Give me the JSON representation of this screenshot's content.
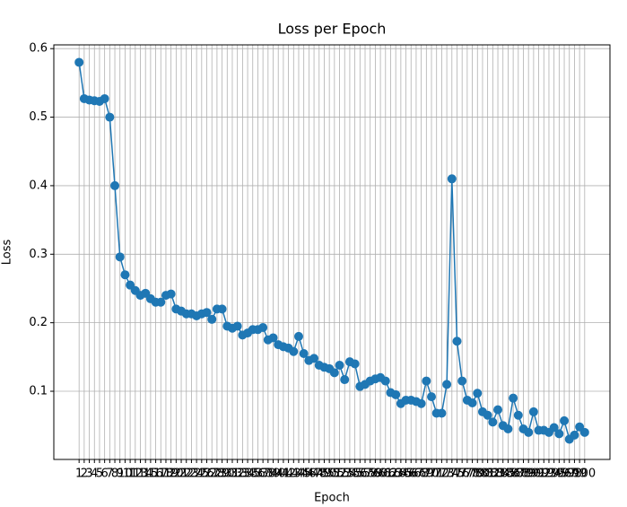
{
  "chart_data": {
    "type": "line",
    "title": "Loss per Epoch",
    "x_label": "Epoch",
    "y_label": "Loss",
    "x": [
      1,
      2,
      3,
      4,
      5,
      6,
      7,
      8,
      9,
      10,
      11,
      12,
      13,
      14,
      15,
      16,
      17,
      18,
      19,
      20,
      21,
      22,
      23,
      24,
      25,
      26,
      27,
      28,
      29,
      30,
      31,
      32,
      33,
      34,
      35,
      36,
      37,
      38,
      39,
      40,
      41,
      42,
      43,
      44,
      45,
      46,
      47,
      48,
      49,
      50,
      51,
      52,
      53,
      54,
      55,
      56,
      57,
      58,
      59,
      60,
      61,
      62,
      63,
      64,
      65,
      66,
      67,
      68,
      69,
      70,
      71,
      72,
      73,
      74,
      75,
      76,
      77,
      78,
      79,
      80,
      81,
      82,
      83,
      84,
      85,
      86,
      87,
      88,
      89,
      90,
      91,
      92,
      93,
      94,
      95,
      96,
      97,
      98,
      99,
      100
    ],
    "series": [
      {
        "name": "Loss",
        "color": "#1f77b4",
        "values": [
          0.58,
          0.527,
          0.525,
          0.524,
          0.523,
          0.527,
          0.5,
          0.4,
          0.296,
          0.27,
          0.255,
          0.247,
          0.24,
          0.243,
          0.235,
          0.23,
          0.23,
          0.24,
          0.242,
          0.22,
          0.217,
          0.213,
          0.213,
          0.21,
          0.213,
          0.215,
          0.205,
          0.22,
          0.22,
          0.195,
          0.192,
          0.195,
          0.182,
          0.185,
          0.19,
          0.19,
          0.193,
          0.175,
          0.178,
          0.168,
          0.165,
          0.163,
          0.158,
          0.18,
          0.155,
          0.145,
          0.148,
          0.138,
          0.135,
          0.133,
          0.127,
          0.138,
          0.117,
          0.143,
          0.14,
          0.107,
          0.11,
          0.115,
          0.118,
          0.12,
          0.115,
          0.098,
          0.095,
          0.082,
          0.087,
          0.087,
          0.085,
          0.082,
          0.115,
          0.092,
          0.068,
          0.068,
          0.11,
          0.41,
          0.173,
          0.115,
          0.087,
          0.083,
          0.097,
          0.07,
          0.065,
          0.055,
          0.073,
          0.05,
          0.045,
          0.09,
          0.065,
          0.045,
          0.04,
          0.07,
          0.043,
          0.043,
          0.04,
          0.047,
          0.038,
          0.057,
          0.03,
          0.036,
          0.048,
          0.04
        ]
      }
    ],
    "xlim": [
      -3.95,
      104.95
    ],
    "ylim": [
      0.0005,
      0.6055
    ],
    "xticks": [
      1,
      2,
      3,
      4,
      5,
      6,
      7,
      8,
      9,
      10,
      11,
      12,
      13,
      14,
      15,
      16,
      17,
      18,
      19,
      20,
      21,
      22,
      23,
      24,
      25,
      26,
      27,
      28,
      29,
      30,
      31,
      32,
      33,
      34,
      35,
      36,
      37,
      38,
      39,
      40,
      41,
      42,
      43,
      44,
      45,
      46,
      47,
      48,
      49,
      50,
      51,
      52,
      53,
      54,
      55,
      56,
      57,
      58,
      59,
      60,
      61,
      62,
      63,
      64,
      65,
      66,
      67,
      68,
      69,
      70,
      71,
      72,
      73,
      74,
      75,
      76,
      77,
      78,
      79,
      80,
      81,
      82,
      83,
      84,
      85,
      86,
      87,
      88,
      89,
      90,
      91,
      92,
      93,
      94,
      95,
      96,
      97,
      98,
      99,
      100
    ],
    "yticks": [
      0.1,
      0.2,
      0.3,
      0.4,
      0.5,
      0.6
    ],
    "grid": true
  }
}
